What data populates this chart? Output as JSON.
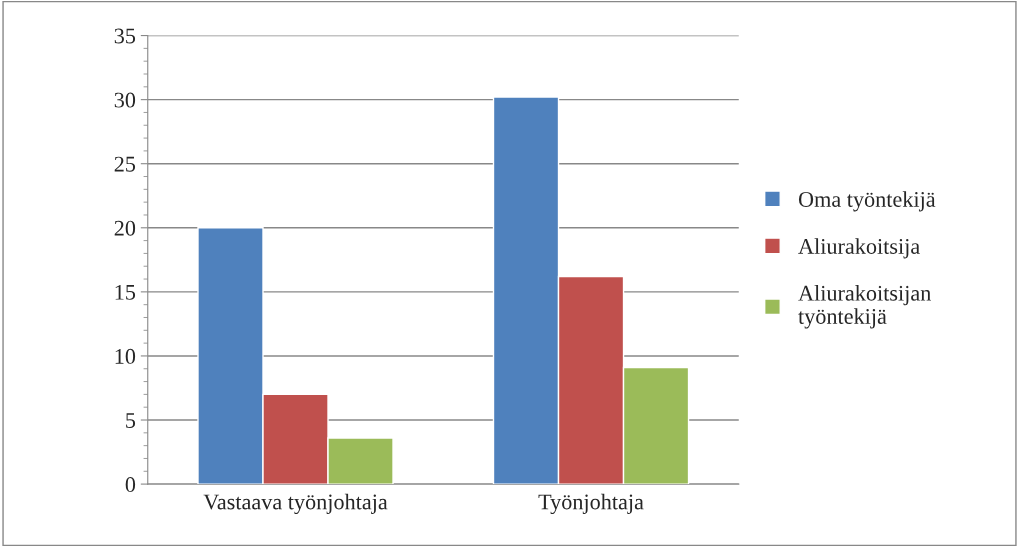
{
  "chart_data": {
    "type": "bar",
    "categories": [
      "Vastaava työnjohtaja",
      "Työnjohtaja"
    ],
    "series": [
      {
        "name": "Oma työntekijä",
        "color": "#4f81bd",
        "values": [
          20,
          30.2
        ]
      },
      {
        "name": "Aliurakoitsija",
        "color": "#c0504d",
        "values": [
          7,
          16.2
        ]
      },
      {
        "name": "Aliurakoitsijan\ntyöntekijä",
        "color": "#9bbb59",
        "values": [
          3.6,
          9.1
        ]
      }
    ],
    "ylim": [
      0,
      35
    ],
    "yticks": [
      0,
      5,
      10,
      15,
      20,
      25,
      30,
      35
    ],
    "grid": "y",
    "legend": "right"
  }
}
